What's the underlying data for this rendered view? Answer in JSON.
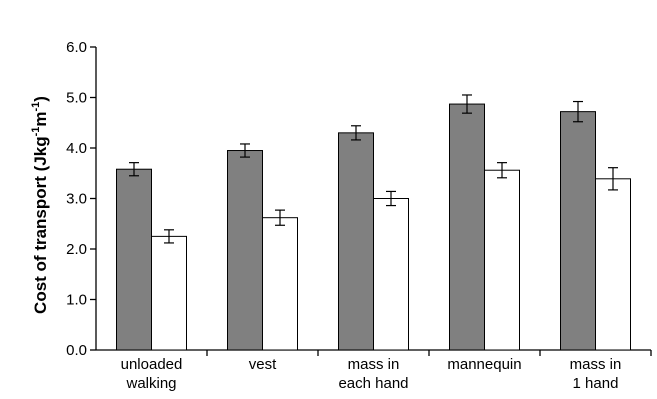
{
  "chart_data": {
    "type": "bar",
    "ylabel": {
      "main": "Cost of transport (Jkg",
      "sup1": "-1",
      "mid": "m",
      "sup2": "-1",
      "end": ")"
    },
    "ylim": [
      0,
      6
    ],
    "yticks": [
      "0.0",
      "1.0",
      "2.0",
      "3.0",
      "4.0",
      "5.0",
      "6.0"
    ],
    "grid": false,
    "categories": [
      [
        "unloaded",
        "walking"
      ],
      [
        "vest"
      ],
      [
        "mass in",
        "each hand"
      ],
      [
        "mannequin"
      ],
      [
        "mass in",
        "1 hand"
      ]
    ],
    "series": [
      {
        "values": [
          3.58,
          3.95,
          4.3,
          4.87,
          4.72
        ],
        "errors": [
          0.13,
          0.13,
          0.14,
          0.18,
          0.2
        ],
        "color": "#808080"
      },
      {
        "values": [
          2.25,
          2.62,
          3.0,
          3.56,
          3.39
        ],
        "errors": [
          0.13,
          0.15,
          0.14,
          0.15,
          0.22
        ],
        "color": "#ffffff"
      }
    ]
  }
}
